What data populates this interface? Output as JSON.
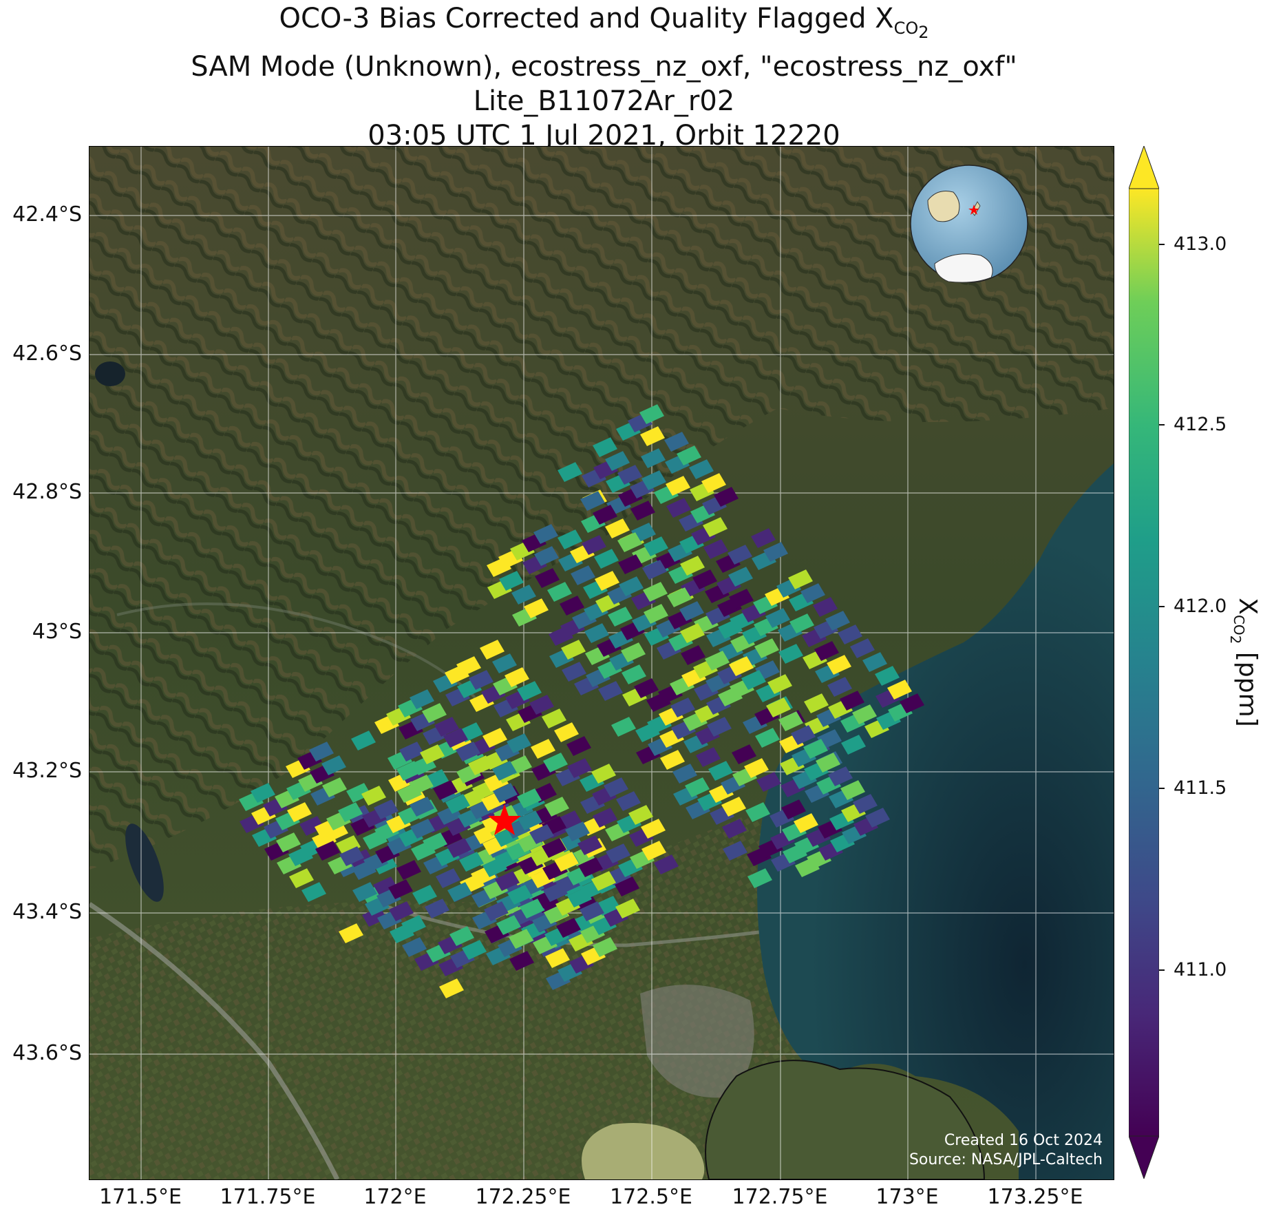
{
  "title": {
    "line1_prefix": "OCO-3 Bias Corrected and Quality Flagged X",
    "line1_sub": "CO",
    "line1_sub2": "2",
    "line2": "SAM Mode (Unknown), ecostress_nz_oxf, \"ecostress_nz_oxf\"",
    "line3": "Lite_B11072Ar_r02",
    "line4": "03:05 UTC 1 Jul 2021, Orbit 12220"
  },
  "map": {
    "lat_ticks": [
      "42.4°S",
      "42.6°S",
      "42.8°S",
      "43°S",
      "43.2°S",
      "43.4°S",
      "43.6°S"
    ],
    "lon_ticks": [
      "171.5°E",
      "171.75°E",
      "172°E",
      "172.25°E",
      "172.5°E",
      "172.75°E",
      "173°E",
      "173.25°E"
    ],
    "inset": "globe-inset",
    "target_marker": "red-star"
  },
  "colorbar": {
    "label_prefix": "X",
    "label_sub": "CO",
    "label_sub2": "2",
    "label_suffix": " [ppm]",
    "ticks": [
      "413.0",
      "412.5",
      "412.0",
      "411.5",
      "411.0"
    ],
    "colormap": "viridis",
    "extend": "both"
  },
  "credit": {
    "created": "Created 16 Oct 2024",
    "source": "Source: NASA/JPL-Caltech"
  },
  "colors": {
    "target_marker": "#ff0000",
    "ocean": "#10202c",
    "land": "#3a4a2c"
  }
}
